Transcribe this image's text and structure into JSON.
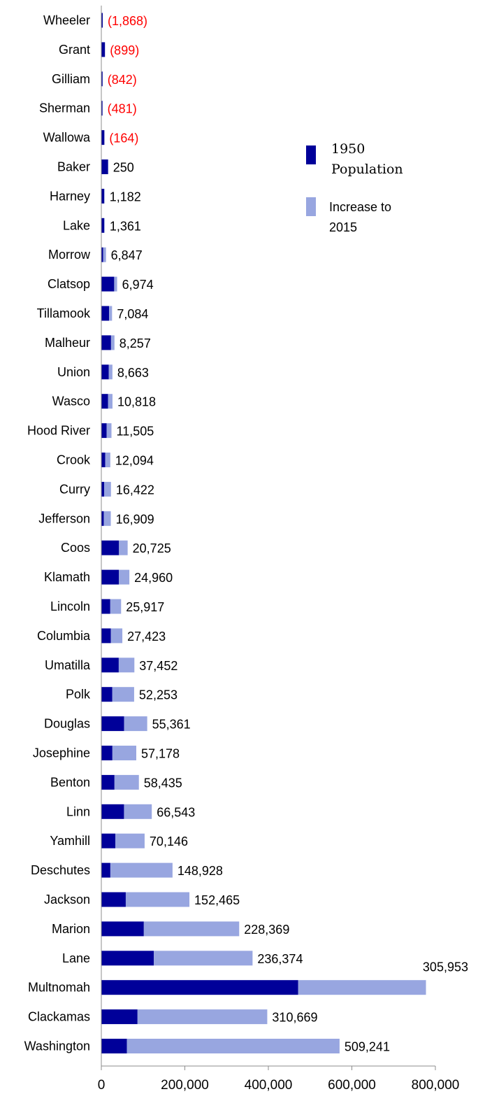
{
  "chart_data": {
    "type": "bar",
    "orientation": "horizontal",
    "stacked": true,
    "title": "",
    "xlabel": "",
    "ylabel": "",
    "xlim": [
      0,
      800000
    ],
    "xticks": [
      0,
      200000,
      400000,
      600000,
      800000
    ],
    "xtick_labels": [
      "0",
      "200,000",
      "400,000",
      "600,000",
      "800,000"
    ],
    "grid": false,
    "legend_position": "right",
    "categories": [
      "Wheeler",
      "Grant",
      "Gilliam",
      "Sherman",
      "Wallowa",
      "Baker",
      "Harney",
      "Lake",
      "Morrow",
      "Clatsop",
      "Tillamook",
      "Malheur",
      "Union",
      "Wasco",
      "Hood River",
      "Crook",
      "Curry",
      "Jefferson",
      "Coos",
      "Klamath",
      "Lincoln",
      "Columbia",
      "Umatilla",
      "Polk",
      "Douglas",
      "Josephine",
      "Benton",
      "Linn",
      "Yamhill",
      "Deschutes",
      "Jackson",
      "Marion",
      "Lane",
      "Multnomah",
      "Clackamas",
      "Washington"
    ],
    "series": [
      {
        "name": "1950 Population",
        "color": "#000099",
        "values": [
          3300,
          8700,
          3000,
          2800,
          7300,
          16000,
          6700,
          6700,
          4300,
          30800,
          18600,
          23200,
          17900,
          15900,
          12800,
          9400,
          6700,
          5800,
          42300,
          42200,
          21400,
          22900,
          41700,
          26300,
          54500,
          26500,
          31500,
          54300,
          33500,
          21600,
          58500,
          101800,
          125800,
          471500,
          86700,
          61300
        ]
      },
      {
        "name": "Increase to 2015",
        "color": "#98a6e0",
        "values": [
          -1868,
          -899,
          -842,
          -481,
          -164,
          250,
          1182,
          1361,
          6847,
          6974,
          7084,
          8257,
          8663,
          10818,
          11505,
          12094,
          16422,
          16909,
          20725,
          24960,
          25917,
          27423,
          37452,
          52253,
          55361,
          57178,
          58435,
          66543,
          70146,
          148928,
          152465,
          228369,
          236374,
          305953,
          310669,
          509241
        ]
      }
    ],
    "data_labels": [
      "(1,868)",
      "(899)",
      "(842)",
      "(481)",
      "(164)",
      "250",
      "1,182",
      "1,361",
      "6,847",
      "6,974",
      "7,084",
      "8,257",
      "8,663",
      "10,818",
      "11,505",
      "12,094",
      "16,422",
      "16,909",
      "20,725",
      "24,960",
      "25,917",
      "27,423",
      "37,452",
      "52,253",
      "55,361",
      "57,178",
      "58,435",
      "66,543",
      "70,146",
      "148,928",
      "152,465",
      "228,369",
      "236,374",
      "305,953",
      "310,669",
      "509,241"
    ],
    "negative_label_color": "#ff0000",
    "legend": [
      {
        "line1": "1950",
        "line2": "Population",
        "color": "#000099"
      },
      {
        "line1": "Increase to",
        "line2": "2015",
        "color": "#98a6e0"
      }
    ]
  }
}
